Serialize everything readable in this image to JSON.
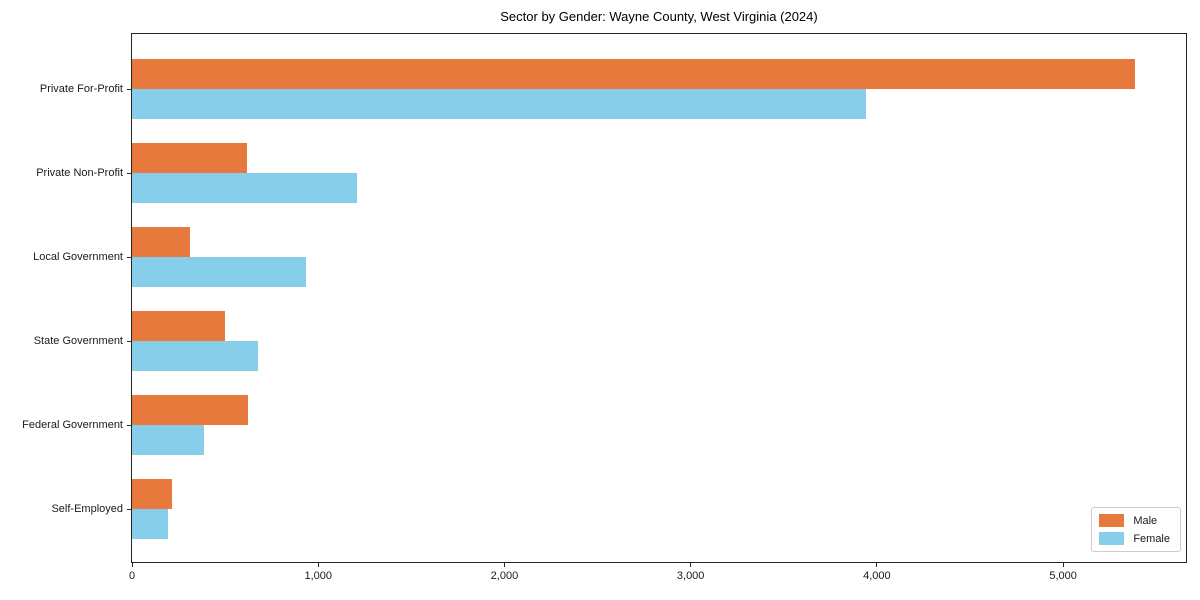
{
  "chart_data": {
    "type": "bar",
    "orientation": "horizontal",
    "title": "Sector by Gender: Wayne County, West Virginia (2024)",
    "categories": [
      "Private For-Profit",
      "Private Non-Profit",
      "Local Government",
      "State Government",
      "Federal Government",
      "Self-Employed"
    ],
    "series": [
      {
        "name": "Male",
        "color": "#E8793C",
        "values": [
          5385,
          620,
          310,
          500,
          625,
          215
        ]
      },
      {
        "name": "Female",
        "color": "#87CEEB",
        "values": [
          3940,
          1210,
          935,
          675,
          385,
          195
        ]
      }
    ],
    "xlabel": "",
    "ylabel": "",
    "xlim": [
      0,
      5660
    ],
    "xticks": [
      0,
      1000,
      2000,
      3000,
      4000,
      5000
    ],
    "xtick_labels": [
      "0",
      "1,000",
      "2,000",
      "3,000",
      "4,000",
      "5,000"
    ],
    "grid": false,
    "legend_position": "lower right",
    "spine_color": "#262626"
  }
}
